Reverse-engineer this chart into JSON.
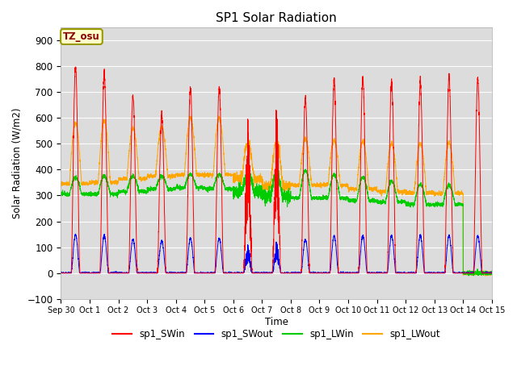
{
  "title": "SP1 Solar Radiation",
  "ylabel": "Solar Radiation (W/m2)",
  "xlabel": "Time",
  "ylim": [
    -100,
    950
  ],
  "yticks": [
    -100,
    0,
    100,
    200,
    300,
    400,
    500,
    600,
    700,
    800,
    900
  ],
  "tz_label": "TZ_osu",
  "x_tick_labels": [
    "Sep 30",
    "Oct 1",
    "Oct 2",
    "Oct 3",
    "Oct 4",
    "Oct 5",
    "Oct 6",
    "Oct 7",
    "Oct 8",
    "Oct 9",
    "Oct 10",
    "Oct 11",
    "Oct 12",
    "Oct 13",
    "Oct 14",
    "Oct 15"
  ],
  "legend_entries": [
    {
      "label": "sp1_SWin",
      "color": "#ff0000"
    },
    {
      "label": "sp1_SWout",
      "color": "#0000ff"
    },
    {
      "label": "sp1_LWin",
      "color": "#00cc00"
    },
    {
      "label": "sp1_LWout",
      "color": "#ffa500"
    }
  ],
  "plot_bg_color": "#dcdcdc",
  "fig_bg_color": "#ffffff",
  "n_days": 16,
  "points_per_day": 288,
  "sw_in_peaks": [
    800,
    770,
    685,
    610,
    720,
    720,
    520,
    500,
    680,
    750,
    755,
    740,
    735,
    760,
    750,
    0
  ],
  "sw_out_peaks": [
    150,
    145,
    130,
    125,
    135,
    135,
    95,
    95,
    130,
    145,
    145,
    145,
    145,
    145,
    145,
    0
  ],
  "lw_in_night": [
    305,
    305,
    315,
    325,
    330,
    325,
    315,
    295,
    290,
    290,
    280,
    275,
    265,
    265,
    0,
    0
  ],
  "lw_out_night": [
    345,
    350,
    365,
    375,
    380,
    380,
    365,
    335,
    340,
    340,
    325,
    315,
    310,
    308,
    0,
    0
  ],
  "lw_in_day": [
    370,
    375,
    375,
    375,
    380,
    380,
    380,
    380,
    395,
    380,
    370,
    355,
    345,
    340,
    0,
    0
  ],
  "lw_out_day": [
    580,
    590,
    560,
    565,
    600,
    600,
    500,
    510,
    520,
    515,
    510,
    500,
    500,
    505,
    0,
    0
  ]
}
